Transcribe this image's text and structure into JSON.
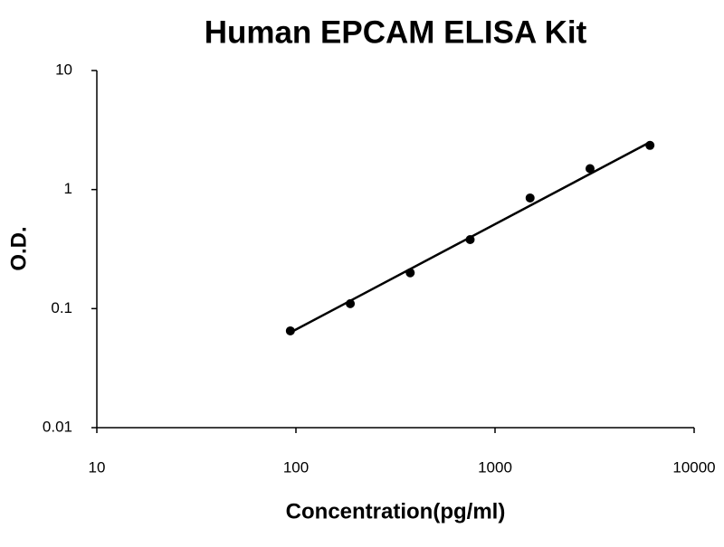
{
  "chart_data": {
    "type": "scatter",
    "title": "Human EPCAM ELISA Kit",
    "x_label": "Concentration(pg/ml)",
    "y_label": "O.D.",
    "x": [
      93.75,
      187.5,
      375,
      750,
      1500,
      3000,
      6000
    ],
    "series": [
      {
        "color": "#000000",
        "values": [
          0.065,
          0.11,
          0.2,
          0.38,
          0.85,
          1.5,
          2.35
        ]
      }
    ],
    "trendline": {
      "x": [
        93.75,
        6000
      ],
      "y": [
        0.063,
        2.5
      ],
      "color": "#000000"
    },
    "xlim": [
      10,
      10000
    ],
    "ylim": [
      0.01,
      10
    ],
    "xticks": [
      10,
      100,
      1000,
      10000
    ],
    "yticks": [
      0.01,
      0.1,
      1,
      10
    ],
    "xscale": "log",
    "yscale": "log",
    "grid": false
  }
}
